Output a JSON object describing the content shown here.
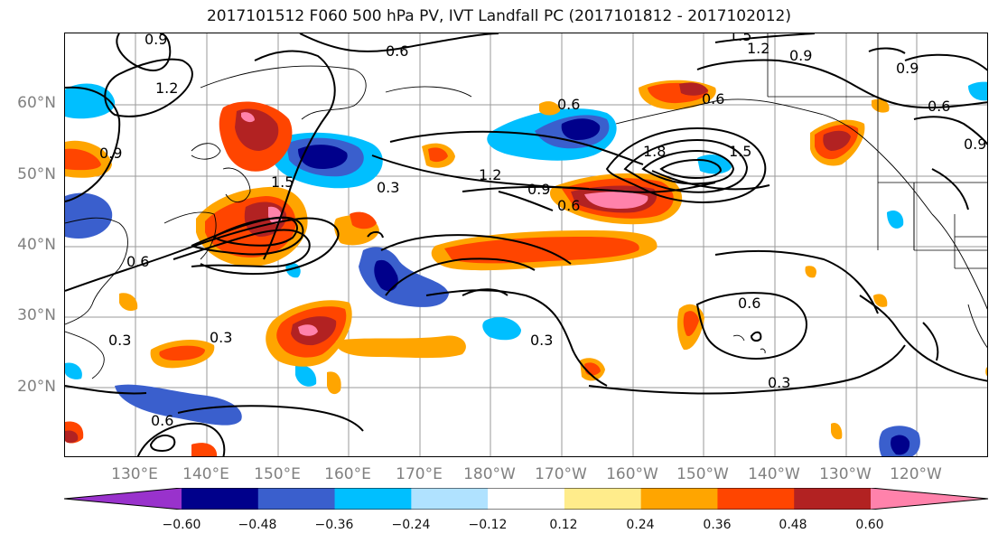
{
  "title": "2017101512 F060 500 hPa PV, IVT Landfall PC (2017101812 - 2017102012)",
  "lat_labels": [
    "60°N",
    "50°N",
    "40°N",
    "30°N",
    "20°N"
  ],
  "lon_labels": [
    "130°E",
    "140°E",
    "150°E",
    "160°E",
    "170°E",
    "180°W",
    "170°W",
    "160°W",
    "150°W",
    "140°W",
    "130°W",
    "120°W"
  ],
  "contour_labels": [
    "0.9",
    "0.6",
    "1.5",
    "1.2",
    "0.9",
    "0.9",
    "0.6",
    "1.2",
    "0.6",
    "0.6",
    "0.9",
    "0.3",
    "1.2",
    "1.8",
    "1.5",
    "0.9",
    "0.6",
    "1.5",
    "0.3",
    "0.6",
    "0.3",
    "0.3",
    "0.6",
    "0.3",
    "0.6",
    "0.9"
  ],
  "colorbar": {
    "ticks": [
      "−0.60",
      "−0.48",
      "−0.36",
      "−0.24",
      "−0.12",
      "0.12",
      "0.24",
      "0.36",
      "0.48",
      "0.60"
    ],
    "colors": [
      "#9932cc",
      "#00008b",
      "#3a5fcd",
      "#00bfff",
      "#b0e2ff",
      "#ffffff",
      "#ffec8b",
      "#ffa500",
      "#ff4500",
      "#b22222",
      "#ff82ab"
    ]
  }
}
